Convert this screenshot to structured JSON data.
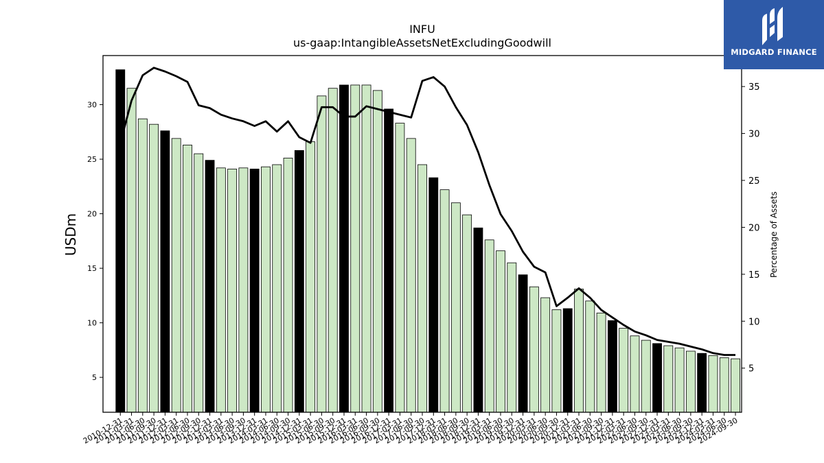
{
  "chart_data": {
    "type": "bar",
    "title": "INFU",
    "subtitle": "us-gaap:IntangibleAssetsNetExcludingGoodwill",
    "xlabel": "",
    "ylabel": "USDm",
    "y2label": "Percentage of Assets",
    "ylim": [
      1.8,
      34.5
    ],
    "y2lim": [
      0.3,
      38.3
    ],
    "yticks": [
      5,
      10,
      15,
      20,
      25,
      30
    ],
    "y2ticks": [
      5,
      10,
      15,
      20,
      25,
      30,
      35
    ],
    "categories": [
      "2010-12-31",
      "2011-03-31",
      "2011-06-30",
      "2011-09-30",
      "2011-12-31",
      "2012-03-31",
      "2012-06-30",
      "2012-09-30",
      "2012-12-31",
      "2013-03-31",
      "2013-06-30",
      "2013-09-30",
      "2013-12-31",
      "2014-03-31",
      "2014-06-30",
      "2014-09-30",
      "2014-12-31",
      "2015-03-31",
      "2015-06-30",
      "2015-09-30",
      "2015-12-31",
      "2016-03-31",
      "2016-06-30",
      "2016-09-30",
      "2016-12-31",
      "2017-03-31",
      "2017-06-30",
      "2017-09-30",
      "2017-12-31",
      "2018-03-31",
      "2018-06-30",
      "2018-09-30",
      "2018-12-31",
      "2019-03-31",
      "2019-06-30",
      "2019-09-30",
      "2019-12-31",
      "2020-03-31",
      "2020-06-30",
      "2020-09-30",
      "2020-12-31",
      "2021-03-31",
      "2021-06-30",
      "2021-09-30",
      "2021-12-31",
      "2022-03-31",
      "2022-06-30",
      "2022-09-30",
      "2022-12-31",
      "2023-03-31",
      "2023-06-30",
      "2023-09-30",
      "2023-12-31",
      "2024-03-31",
      "2024-06-30",
      "2024-09-30"
    ],
    "series": [
      {
        "type": "bar",
        "values": [
          33.2,
          31.5,
          28.7,
          28.2,
          27.6,
          26.9,
          26.3,
          25.5,
          24.9,
          24.2,
          24.1,
          24.2,
          24.1,
          24.3,
          24.5,
          25.1,
          25.8,
          26.6,
          30.8,
          31.5,
          31.8,
          31.8,
          31.8,
          31.3,
          29.6,
          28.3,
          26.9,
          24.5,
          23.3,
          22.2,
          21.0,
          19.9,
          18.7,
          17.6,
          16.6,
          15.5,
          14.4,
          13.3,
          12.3,
          11.2,
          11.3,
          13.1,
          12.0,
          10.9,
          10.2,
          9.5,
          8.8,
          8.4,
          8.1,
          7.9,
          7.7,
          7.4,
          7.2,
          7.0,
          6.8,
          6.7
        ],
        "colors": [
          "#000000",
          "#cde8c5"
        ]
      },
      {
        "type": "line",
        "values": [
          29.0,
          33.5,
          36.2,
          37.0,
          36.6,
          36.1,
          35.5,
          33.0,
          32.7,
          32.0,
          31.6,
          31.3,
          30.8,
          31.3,
          30.2,
          31.3,
          29.6,
          29.0,
          32.8,
          32.8,
          31.8,
          31.8,
          32.9,
          32.6,
          32.3,
          32.0,
          31.7,
          35.6,
          36.0,
          35.0,
          32.8,
          30.9,
          28.0,
          24.5,
          21.4,
          19.6,
          17.4,
          15.8,
          15.2,
          11.6,
          12.5,
          13.5,
          12.5,
          11.2,
          10.4,
          9.6,
          8.9,
          8.5,
          8.0,
          7.8,
          7.6,
          7.3,
          7.0,
          6.6,
          6.4,
          6.4
        ],
        "color": "#000000"
      }
    ],
    "highlight_rule": "year-end (12-31) bars are black; other quarters light green"
  },
  "logo": {
    "text": "MIDGARD FINANCE",
    "background": "#2e5aa8"
  }
}
